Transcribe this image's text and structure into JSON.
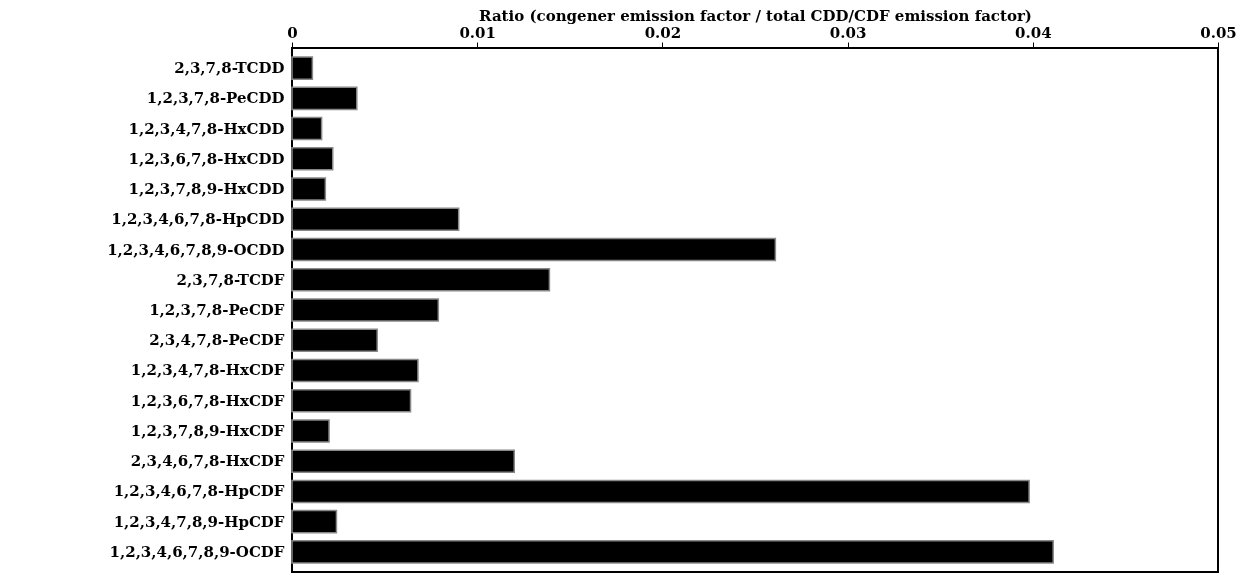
{
  "chart_data": {
    "type": "bar",
    "orientation": "horizontal",
    "xlabel": "Ratio (congener emission factor / total CDD/CDF emission factor)",
    "categories": [
      "2,3,7,8-TCDD",
      "1,2,3,7,8-PeCDD",
      "1,2,3,4,7,8-HxCDD",
      "1,2,3,6,7,8-HxCDD",
      "1,2,3,7,8,9-HxCDD",
      "1,2,3,4,6,7,8-HpCDD",
      "1,2,3,4,6,7,8,9-OCDD",
      "2,3,7,8-TCDF",
      "1,2,3,7,8-PeCDF",
      "2,3,4,7,8-PeCDF",
      "1,2,3,4,7,8-HxCDF",
      "1,2,3,6,7,8-HxCDF",
      "1,2,3,7,8,9-HxCDF",
      "2,3,4,6,7,8-HxCDF",
      "1,2,3,4,6,7,8-HpCDF",
      "1,2,3,4,7,8,9-HpCDF",
      "1,2,3,4,6,7,8,9-OCDF"
    ],
    "values": [
      0.0011,
      0.0035,
      0.0016,
      0.0022,
      0.0018,
      0.009,
      0.0261,
      0.0139,
      0.0079,
      0.0046,
      0.0068,
      0.0064,
      0.002,
      0.012,
      0.0398,
      0.0024,
      0.0411
    ],
    "color": "#000000",
    "xlim": [
      0,
      0.05
    ],
    "xticks": [
      0,
      0.01,
      0.02,
      0.03,
      0.04,
      0.05
    ],
    "grid": false
  }
}
